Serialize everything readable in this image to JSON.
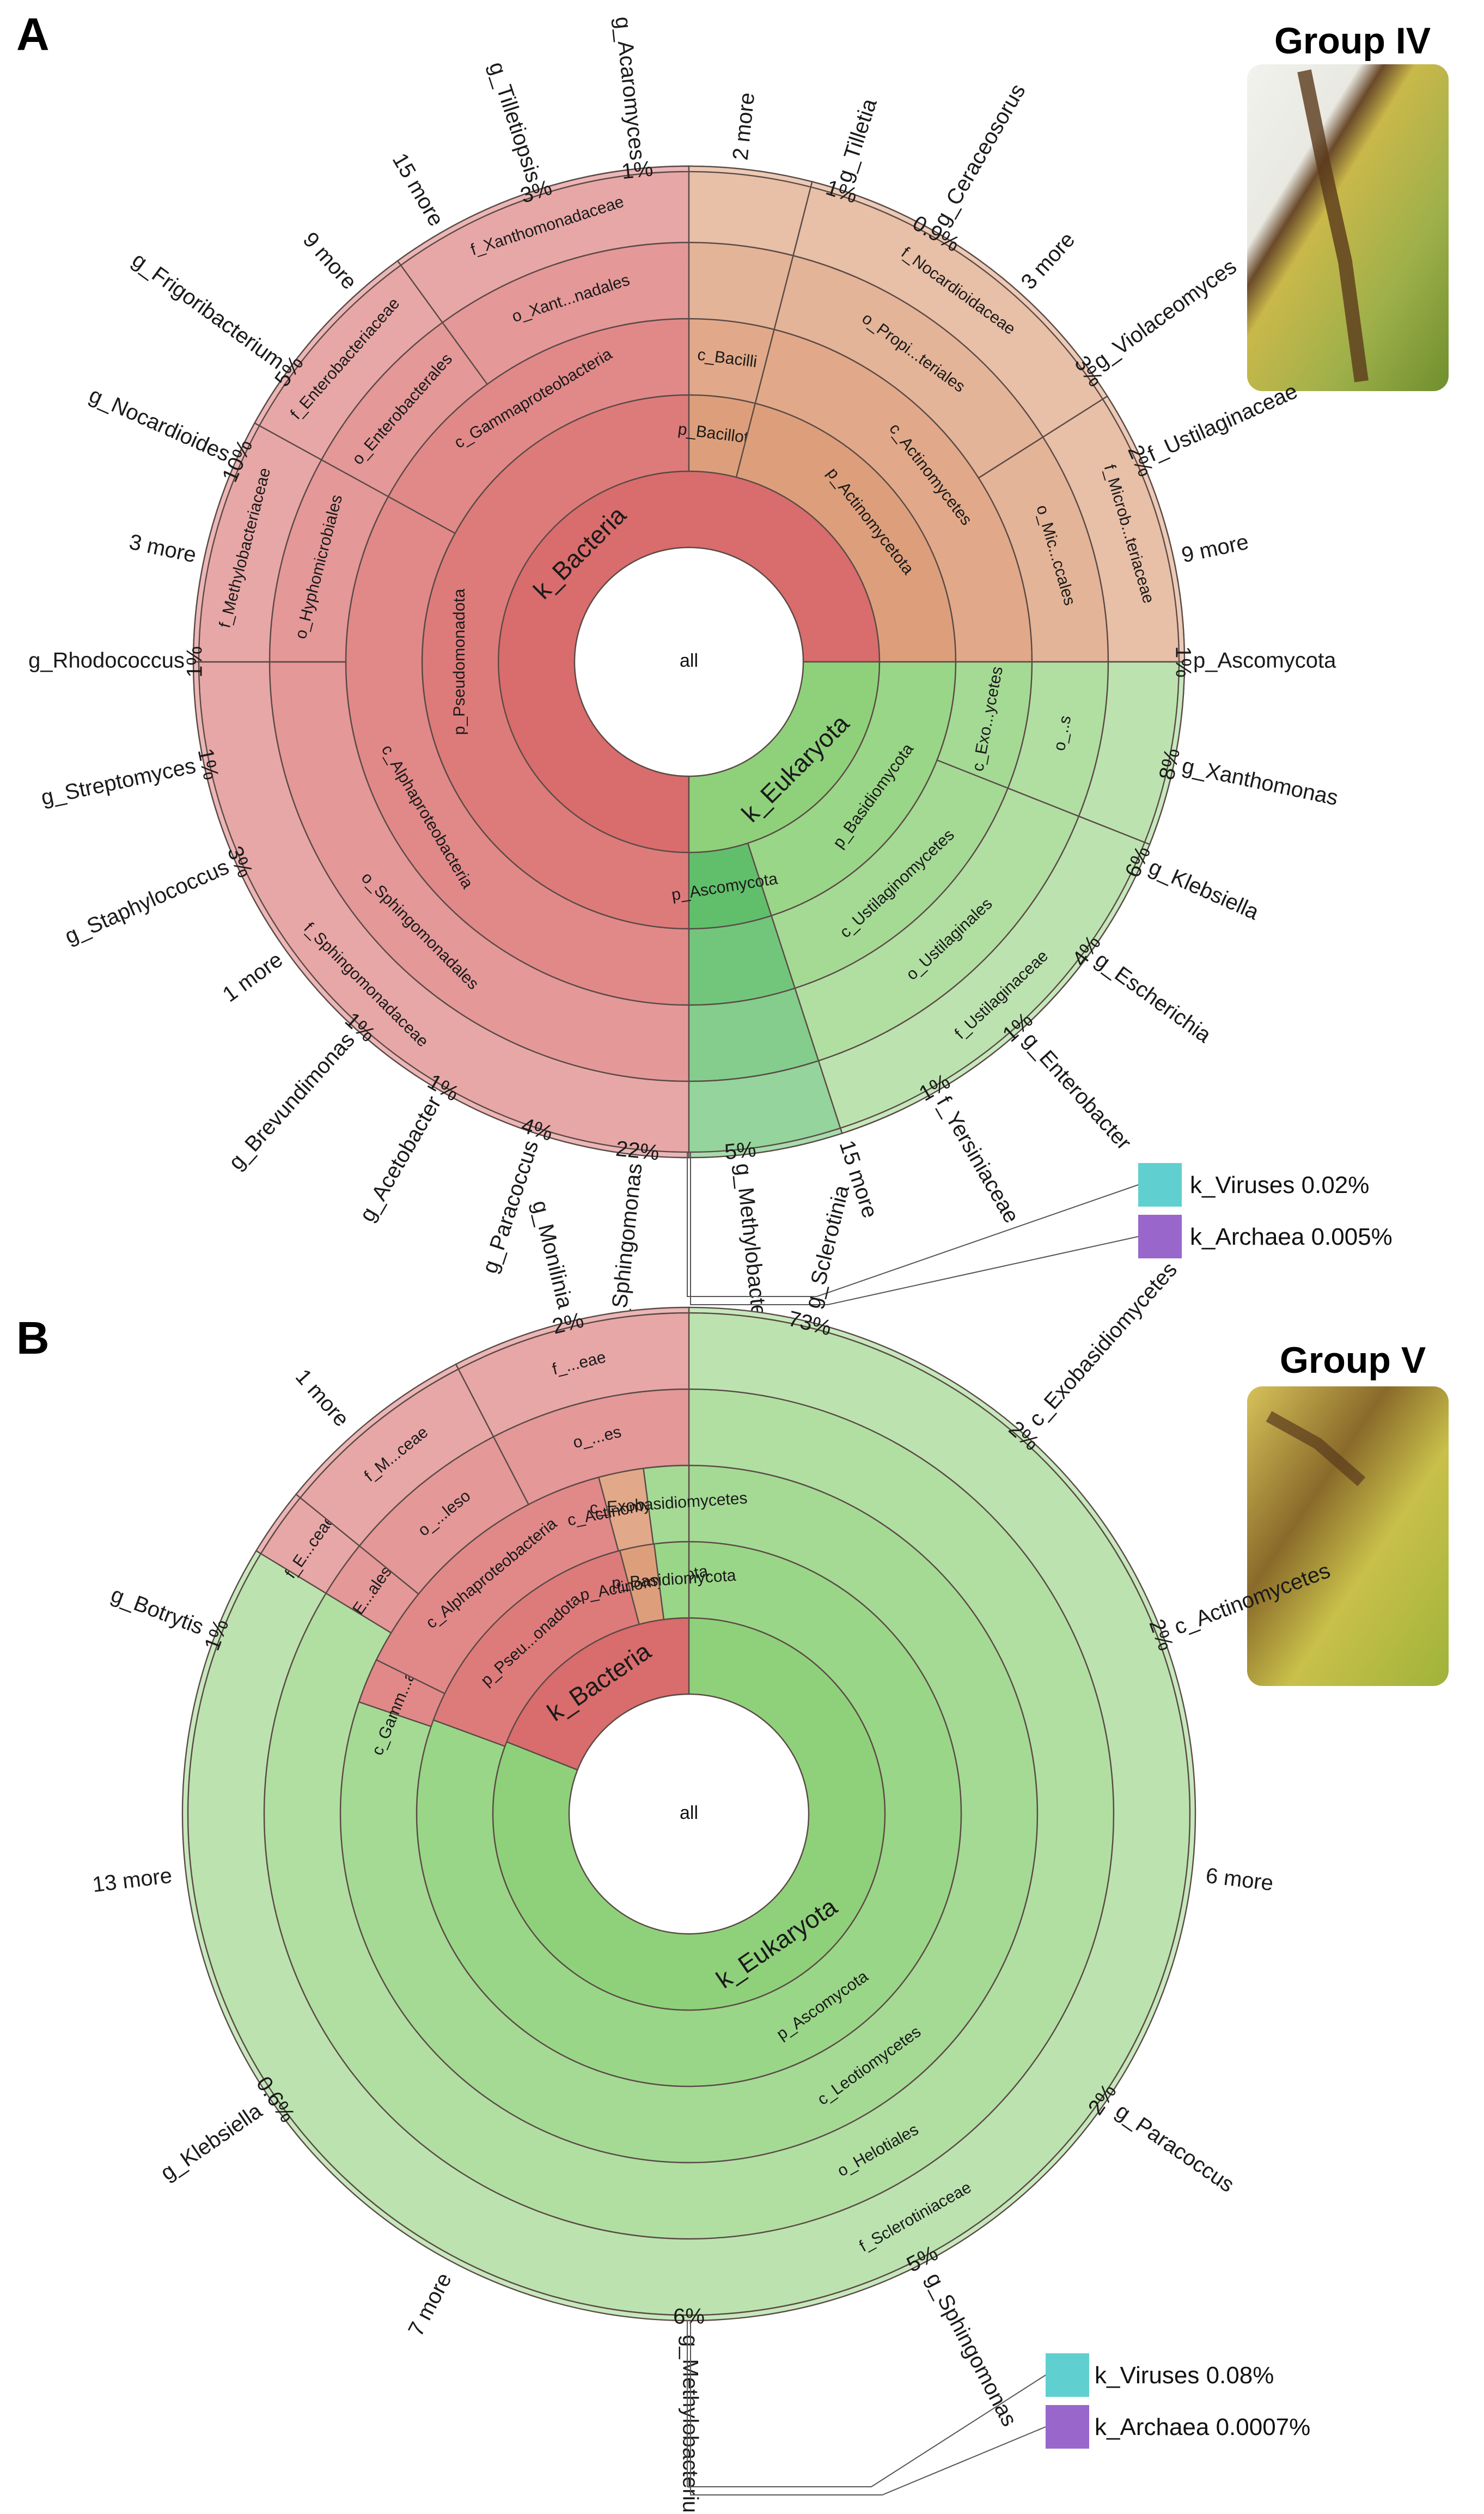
{
  "panels": [
    {
      "letter": "A",
      "group": "Group IV",
      "center_label": "all",
      "legend": [
        {
          "label": "k_Viruses 0.02%",
          "color": "#5fd0cf"
        },
        {
          "label": "k_Archaea 0.005%",
          "color": "#9966cc"
        }
      ]
    },
    {
      "letter": "B",
      "group": "Group V",
      "center_label": "all",
      "legend": [
        {
          "label": "k_Viruses 0.08%",
          "color": "#5fd0cf"
        },
        {
          "label": "k_Archaea 0.0007%",
          "color": "#9966cc"
        }
      ]
    }
  ],
  "chart_data": [
    {
      "type": "sunburst",
      "panel": "A",
      "title": "Group IV",
      "center": "all",
      "colors": {
        "bacteria": "#d96c6c",
        "actino": "#d9946c",
        "eukaryota": "#8fd17a",
        "ascomycota": "#4fb85a"
      },
      "rings": [
        {
          "level": "kingdom",
          "segments": [
            {
              "label": "k_Bacteria",
              "value": 75,
              "group": "bacteria"
            },
            {
              "label": "k_Eukaryota",
              "value": 25,
              "group": "eukaryota"
            }
          ]
        },
        {
          "level": "phylum",
          "segments": [
            {
              "label": "p_Pseudomonadota",
              "value": 50,
              "group": "bacteria"
            },
            {
              "label": "p_Bacillota",
              "value": 4,
              "group": "actino"
            },
            {
              "label": "p_Actinomycetota",
              "value": 21,
              "group": "actino"
            },
            {
              "label": "p_Basidiomycota",
              "value": 20,
              "group": "eukaryota"
            },
            {
              "label": "p_Ascomycota",
              "value": 5,
              "group": "ascomycota"
            }
          ]
        },
        {
          "level": "class",
          "segments": [
            {
              "label": "c_Alphaproteobacteria",
              "value": 33,
              "group": "bacteria"
            },
            {
              "label": "c_Gammaproteobacteria",
              "value": 17,
              "group": "bacteria"
            },
            {
              "label": "c_Bacilli",
              "value": 4,
              "group": "actino"
            },
            {
              "label": "c_Actinomycetes",
              "value": 21,
              "group": "actino"
            },
            {
              "label": "c_Exo...ycetes",
              "value": 6,
              "group": "eukaryota"
            },
            {
              "label": "c_Ustilaginomycetes",
              "value": 14,
              "group": "eukaryota"
            },
            {
              "label": "",
              "value": 5,
              "group": "ascomycota"
            }
          ]
        },
        {
          "level": "order",
          "segments": [
            {
              "label": "o_Sphingomonadales",
              "value": 25,
              "group": "bacteria"
            },
            {
              "label": "o_Hyphomicrobiales",
              "value": 8,
              "group": "bacteria"
            },
            {
              "label": "o_Enterobacterales",
              "value": 7,
              "group": "bacteria"
            },
            {
              "label": "o_Xant...nadales",
              "value": 10,
              "group": "bacteria"
            },
            {
              "label": "",
              "value": 4,
              "group": "actino"
            },
            {
              "label": "o_Propi...teriales",
              "value": 12,
              "group": "actino"
            },
            {
              "label": "o_Mic...ccales",
              "value": 9,
              "group": "actino"
            },
            {
              "label": "o_..s",
              "value": 6,
              "group": "eukaryota"
            },
            {
              "label": "o_Ustilaginales",
              "value": 14,
              "group": "eukaryota"
            },
            {
              "label": "",
              "value": 5,
              "group": "ascomycota"
            }
          ]
        },
        {
          "level": "family",
          "segments": [
            {
              "label": "f_Sphingomonadaceae",
              "value": 25,
              "group": "bacteria"
            },
            {
              "label": "f_Methylobacteriaceae",
              "value": 8,
              "group": "bacteria"
            },
            {
              "label": "f_Enterobacteriaceae",
              "value": 7,
              "group": "bacteria"
            },
            {
              "label": "f_Xanthomonadaceae",
              "value": 10,
              "group": "bacteria"
            },
            {
              "label": "",
              "value": 4,
              "group": "actino"
            },
            {
              "label": "f_Nocardioidaceae",
              "value": 12,
              "group": "actino"
            },
            {
              "label": "f_Microb...teriaceae",
              "value": 9,
              "group": "actino"
            },
            {
              "label": "",
              "value": 6,
              "group": "eukaryota"
            },
            {
              "label": "f_Ustilaginaceae",
              "value": 14,
              "group": "eukaryota"
            },
            {
              "label": "",
              "value": 5,
              "group": "ascomycota"
            }
          ]
        }
      ],
      "genera": [
        {
          "label": "g_Sphingomonas",
          "percent": "22%"
        },
        {
          "label": "g_Paracoccus",
          "percent": "4%"
        },
        {
          "label": "g_Acetobacter",
          "percent": "1%"
        },
        {
          "label": "g_Brevundimonas",
          "percent": "1%"
        },
        {
          "label": "1 more",
          "percent": ""
        },
        {
          "label": "g_Staphylococcus",
          "percent": "3%"
        },
        {
          "label": "g_Streptomyces",
          "percent": "1%"
        },
        {
          "label": "g_Rhodococcus",
          "percent": "1%"
        },
        {
          "label": "3 more",
          "percent": ""
        },
        {
          "label": "g_Nocardioides",
          "percent": "10%"
        },
        {
          "label": "g_Frigoribacterium",
          "percent": "5%"
        },
        {
          "label": "9 more",
          "percent": ""
        },
        {
          "label": "15 more",
          "percent": ""
        },
        {
          "label": "g_Tilletiopsis",
          "percent": "3%"
        },
        {
          "label": "g_Acaromyces",
          "percent": "1%"
        },
        {
          "label": "2 more",
          "percent": ""
        },
        {
          "label": "g_Tilletia",
          "percent": "1%"
        },
        {
          "label": "g_Ceraceosorus",
          "percent": "0.9%"
        },
        {
          "label": "3 more",
          "percent": ""
        },
        {
          "label": "g_Violaceomyces",
          "percent": "3%"
        },
        {
          "label": "f_Ustilaginaceae",
          "percent": "2%"
        },
        {
          "label": "9 more",
          "percent": ""
        },
        {
          "label": "p_Ascomycota",
          "percent": "1%"
        },
        {
          "label": "g_Xanthomonas",
          "percent": "8%"
        },
        {
          "label": "g_Klebsiella",
          "percent": "6%"
        },
        {
          "label": "g_Escherichia",
          "percent": "4%"
        },
        {
          "label": "g_Enterobacter",
          "percent": "1%"
        },
        {
          "label": "f_Yersiniaceae",
          "percent": "1%"
        },
        {
          "label": "15 more",
          "percent": ""
        },
        {
          "label": "g_Methylobacterium",
          "percent": "5%"
        }
      ]
    },
    {
      "type": "sunburst",
      "panel": "B",
      "title": "Group V",
      "center": "all",
      "colors": {
        "bacteria": "#d96c6c",
        "actino": "#d9946c",
        "eukaryota": "#8fd17a",
        "ascomycota": "#4fb85a"
      },
      "rings": [
        {
          "level": "kingdom",
          "segments": [
            {
              "label": "k_Eukaryota",
              "value": 81,
              "group": "eukaryota"
            },
            {
              "label": "k_Bacteria",
              "value": 19,
              "group": "bacteria"
            }
          ]
        },
        {
          "level": "phylum",
          "segments": [
            {
              "label": "p_Ascomycota",
              "value": 79,
              "group": "eukaryota"
            },
            {
              "label": "p_Pseu...onadota",
              "value": 15,
              "group": "bacteria"
            },
            {
              "label": "p_Actinomycetota",
              "value": 2,
              "group": "actino"
            },
            {
              "label": "p_Basidiomycota",
              "value": 2,
              "group": "eukaryota"
            }
          ]
        },
        {
          "level": "class",
          "segments": [
            {
              "label": "c_Leotiomycetes",
              "value": 77,
              "group": "eukaryota"
            },
            {
              "label": "c_Gamm...acteria",
              "value": 2,
              "group": "bacteria"
            },
            {
              "label": "c_Alphaproteobacteria",
              "value": 13,
              "group": "bacteria"
            },
            {
              "label": "c_Actinomycetes",
              "value": 2,
              "group": "actino"
            },
            {
              "label": "c_Exobasidiomycetes",
              "value": 2,
              "group": "eukaryota"
            }
          ]
        },
        {
          "level": "order",
          "segments": [
            {
              "label": "o_Helotiales",
              "value": 77,
              "group": "eukaryota"
            },
            {
              "label": "E...ales",
              "value": 2,
              "group": "bacteria"
            },
            {
              "label": "o_...leso",
              "value": 6,
              "group": "bacteria"
            },
            {
              "label": "o_...es",
              "value": 7,
              "group": "bacteria"
            }
          ]
        },
        {
          "level": "family",
          "segments": [
            {
              "label": "f_Sclerotiniaceae",
              "value": 77,
              "group": "eukaryota"
            },
            {
              "label": "f_E...ceae",
              "value": 2,
              "group": "bacteria"
            },
            {
              "label": "f_M...ceae",
              "value": 6,
              "group": "bacteria"
            },
            {
              "label": "f_...eae",
              "value": 7,
              "group": "bacteria"
            }
          ]
        }
      ],
      "genera": [
        {
          "label": "g_Sclerotinia",
          "percent": "73%"
        },
        {
          "label": "c_Exobasidiomycetes",
          "percent": "2%"
        },
        {
          "label": "c_Actinomycetes",
          "percent": "2%"
        },
        {
          "label": "6 more",
          "percent": ""
        },
        {
          "label": "g_Paracoccus",
          "percent": "2%"
        },
        {
          "label": "g_Sphingomonas",
          "percent": "5%"
        },
        {
          "label": "g_Methylobacterium",
          "percent": "6%"
        },
        {
          "label": "7 more",
          "percent": ""
        },
        {
          "label": "g_Klebsiella",
          "percent": "0.6%"
        },
        {
          "label": "13 more",
          "percent": ""
        },
        {
          "label": "g_Botrytis",
          "percent": "1%"
        },
        {
          "label": "1 more",
          "percent": ""
        },
        {
          "label": "g_Monilinia",
          "percent": "2%"
        }
      ]
    }
  ]
}
